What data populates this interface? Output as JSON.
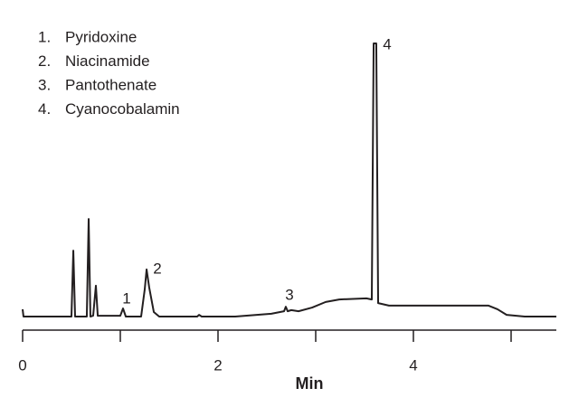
{
  "chart_data": {
    "type": "line",
    "xlabel": "Min",
    "x": [
      0,
      0.009,
      0.5,
      0.519,
      0.537,
      0.657,
      0.676,
      0.694,
      0.722,
      0.75,
      0.769,
      1.0,
      1.028,
      1.056,
      1.213,
      1.25,
      1.269,
      1.296,
      1.343,
      1.398,
      1.787,
      1.806,
      1.833,
      2.176,
      2.546,
      2.676,
      2.694,
      2.713,
      2.75,
      2.824,
      2.963,
      3.102,
      3.241,
      3.519,
      3.574,
      3.593,
      3.62,
      3.639,
      3.75,
      4.398,
      4.769,
      4.861,
      4.954,
      5.139,
      5.463
    ],
    "values": [
      2.6,
      0,
      0,
      23.5,
      0,
      0,
      34.8,
      0,
      0.3,
      11.0,
      0.3,
      0.3,
      2.9,
      0,
      0,
      9.7,
      16.8,
      10.3,
      1.6,
      0,
      0,
      0.6,
      0,
      0,
      1.0,
      1.9,
      3.5,
      1.9,
      2.3,
      1.9,
      3.2,
      5.2,
      6.1,
      6.5,
      6.1,
      97.4,
      97.4,
      4.8,
      3.9,
      3.9,
      3.9,
      2.6,
      0.6,
      0,
      0
    ],
    "color": "#231f20",
    "xlim": [
      0,
      5.463
    ],
    "ylim": [
      0,
      100
    ],
    "xticks": [
      0,
      2,
      4
    ],
    "xminorticks": [
      1,
      3,
      5
    ],
    "peak_labels": [
      "1",
      "2",
      "3",
      "4"
    ],
    "legend": [
      {
        "number": "1.",
        "name": "Pyridoxine"
      },
      {
        "number": "2.",
        "name": "Niacinamide"
      },
      {
        "number": "3.",
        "name": "Pantothenate"
      },
      {
        "number": "4.",
        "name": "Cyanocobalamin"
      }
    ]
  }
}
